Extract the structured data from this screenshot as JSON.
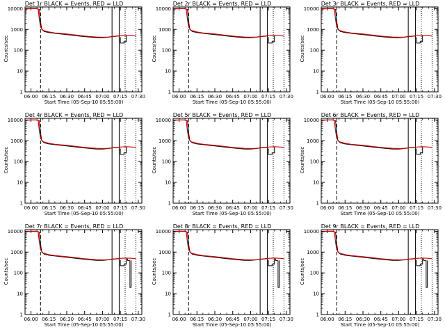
{
  "chart_data": [
    {
      "type": "line",
      "title": "Det 1r BLACK = Events, RED = LLD",
      "xlabel": "Start Time (05-Sep-10 05:55:00)",
      "ylabel": "Counts/sec",
      "xticks": [
        "06:00",
        "06:15",
        "06:30",
        "06:45",
        "07:00",
        "07:15",
        "07:30"
      ],
      "yticks": [
        "1",
        "10",
        "100",
        "1000",
        "10000"
      ],
      "ylim": [
        1,
        12000
      ],
      "yscale": "log",
      "xlim_minutes": [
        0,
        98
      ],
      "series": []
    },
    {
      "type": "line",
      "title": "Det 2r BLACK = Events, RED = LLD",
      "xlabel": "Start Time (05-Sep-10 05:55:00)",
      "ylabel": "Counts/sec",
      "xticks": [
        "06:00",
        "06:15",
        "06:30",
        "06:45",
        "07:00",
        "07:15",
        "07:30"
      ],
      "yticks": [
        "1",
        "10",
        "100",
        "1000",
        "10000"
      ],
      "ylim": [
        1,
        12000
      ],
      "yscale": "log",
      "xlim_minutes": [
        0,
        98
      ],
      "series": []
    },
    {
      "type": "line",
      "title": "Det 3r BLACK = Events, RED = LLD",
      "xlabel": "Start Time (05-Sep-10 05:55:00)",
      "ylabel": "Counts/sec",
      "xticks": [
        "06:00",
        "06:15",
        "06:30",
        "06:45",
        "07:00",
        "07:15",
        "07:30"
      ],
      "yticks": [
        "1",
        "10",
        "100",
        "1000",
        "10000"
      ],
      "ylim": [
        1,
        12000
      ],
      "yscale": "log",
      "xlim_minutes": [
        0,
        98
      ],
      "series": []
    },
    {
      "type": "line",
      "title": "Det 4r BLACK = Events, RED = LLD",
      "xlabel": "Start Time (05-Sep-10 05:55:00)",
      "ylabel": "Counts/sec",
      "xticks": [
        "06:00",
        "06:15",
        "06:30",
        "06:45",
        "07:00",
        "07:15",
        "07:30"
      ],
      "yticks": [
        "1",
        "10",
        "100",
        "1000",
        "10000"
      ],
      "ylim": [
        1,
        12000
      ],
      "yscale": "log",
      "xlim_minutes": [
        0,
        98
      ],
      "series": []
    },
    {
      "type": "line",
      "title": "Det 5r BLACK = Events, RED = LLD",
      "xlabel": "Start Time (05-Sep-10 05:55:00)",
      "ylabel": "Counts/sec",
      "xticks": [
        "06:00",
        "06:15",
        "06:30",
        "06:45",
        "07:00",
        "07:15",
        "07:30"
      ],
      "yticks": [
        "1",
        "10",
        "100",
        "1000",
        "10000"
      ],
      "ylim": [
        1,
        12000
      ],
      "yscale": "log",
      "xlim_minutes": [
        0,
        98
      ],
      "series": []
    },
    {
      "type": "line",
      "title": "Det 6r BLACK = Events, RED = LLD",
      "xlabel": "Start Time (05-Sep-10 05:55:00)",
      "ylabel": "Counts/sec",
      "xticks": [
        "06:00",
        "06:15",
        "06:30",
        "06:45",
        "07:00",
        "07:15",
        "07:30"
      ],
      "yticks": [
        "1",
        "10",
        "100",
        "1000",
        "10000"
      ],
      "ylim": [
        1,
        12000
      ],
      "yscale": "log",
      "xlim_minutes": [
        0,
        98
      ],
      "series": []
    },
    {
      "type": "line",
      "title": "Det 7r BLACK = Events, RED = LLD",
      "xlabel": "Start Time (05-Sep-10 05:55:00)",
      "ylabel": "Counts/sec",
      "xticks": [
        "06:00",
        "06:15",
        "06:30",
        "06:45",
        "07:00",
        "07:15",
        "07:30"
      ],
      "yticks": [
        "1",
        "10",
        "100",
        "1000",
        "10000"
      ],
      "ylim": [
        1,
        12000
      ],
      "yscale": "log",
      "xlim_minutes": [
        0,
        98
      ],
      "series": []
    },
    {
      "type": "line",
      "title": "Det 8r BLACK = Events, RED = LLD",
      "xlabel": "Start Time (05-Sep-10 05:55:00)",
      "ylabel": "Counts/sec",
      "xticks": [
        "06:00",
        "06:15",
        "06:30",
        "06:45",
        "07:00",
        "07:15",
        "07:30"
      ],
      "yticks": [
        "1",
        "10",
        "100",
        "1000",
        "10000"
      ],
      "ylim": [
        1,
        12000
      ],
      "yscale": "log",
      "xlim_minutes": [
        0,
        98
      ],
      "series": []
    },
    {
      "type": "line",
      "title": "Det 9r BLACK = Events, RED = LLD",
      "xlabel": "Start Time (05-Sep-10 05:55:00)",
      "ylabel": "Counts/sec",
      "xticks": [
        "06:00",
        "06:15",
        "06:30",
        "06:45",
        "07:00",
        "07:15",
        "07:30"
      ],
      "yticks": [
        "1",
        "10",
        "100",
        "1000",
        "10000"
      ],
      "ylim": [
        1,
        12000
      ],
      "yscale": "log",
      "xlim_minutes": [
        0,
        98
      ],
      "series": []
    }
  ],
  "common": {
    "events_color": "#000000",
    "lld_color": "#cc0000",
    "events": [
      [
        0,
        9000
      ],
      [
        3,
        10000
      ],
      [
        6,
        10000
      ],
      [
        10,
        10000
      ],
      [
        12,
        9000
      ],
      [
        13,
        2500
      ],
      [
        14,
        1000
      ],
      [
        16,
        800
      ],
      [
        20,
        700
      ],
      [
        25,
        650
      ],
      [
        30,
        600
      ],
      [
        35,
        560
      ],
      [
        40,
        520
      ],
      [
        45,
        480
      ],
      [
        50,
        450
      ],
      [
        55,
        420
      ],
      [
        60,
        400
      ],
      [
        65,
        400
      ],
      [
        70,
        420
      ],
      [
        73,
        450
      ],
      [
        75,
        460
      ],
      [
        79,
        480
      ]
    ],
    "lld": [
      [
        0,
        9000
      ],
      [
        3,
        9800
      ],
      [
        6,
        10000
      ],
      [
        9,
        10000
      ],
      [
        11,
        9500
      ],
      [
        12,
        3000
      ],
      [
        13,
        1300
      ],
      [
        15,
        900
      ],
      [
        20,
        750
      ],
      [
        25,
        680
      ],
      [
        30,
        640
      ],
      [
        35,
        600
      ],
      [
        40,
        560
      ],
      [
        45,
        520
      ],
      [
        50,
        480
      ],
      [
        55,
        450
      ],
      [
        60,
        430
      ],
      [
        65,
        420
      ],
      [
        70,
        430
      ],
      [
        73,
        460
      ],
      [
        75,
        470
      ],
      [
        80,
        500
      ],
      [
        85,
        520
      ],
      [
        90,
        500
      ],
      [
        93,
        480
      ]
    ],
    "events_tail": [
      [
        80,
        420
      ],
      [
        80,
        220
      ],
      [
        83,
        220
      ],
      [
        83,
        260
      ],
      [
        85,
        260
      ],
      [
        85,
        500
      ]
    ],
    "drop_panels": [
      6,
      7,
      8
    ],
    "drop_events": [
      [
        86,
        480
      ],
      [
        86,
        400
      ],
      [
        88,
        380
      ],
      [
        88,
        20
      ],
      [
        89,
        20
      ],
      [
        89,
        400
      ]
    ],
    "dashed_x": 13,
    "solid_x": [
      73,
      79
    ],
    "dotted_x": [
      84,
      93
    ]
  }
}
